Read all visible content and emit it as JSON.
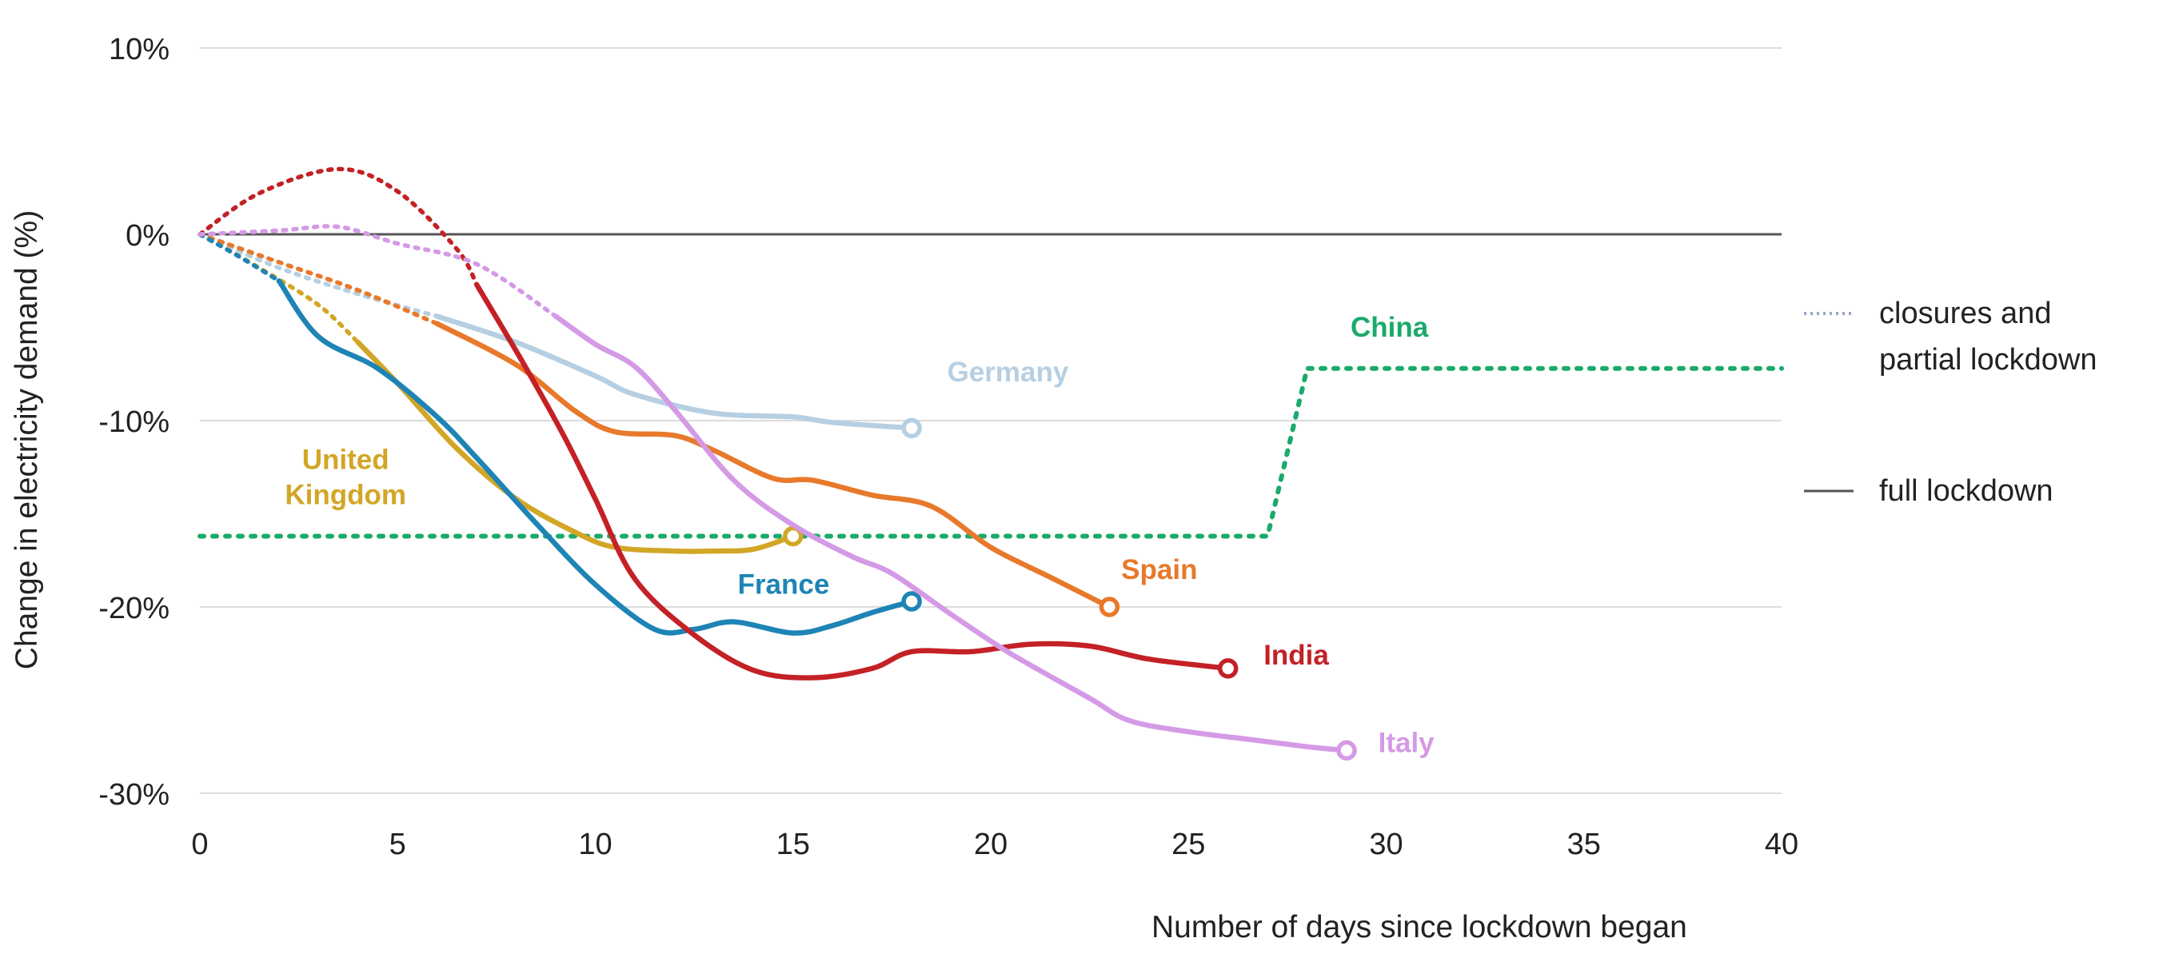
{
  "chart_data": {
    "type": "line",
    "title": "",
    "xlabel": "Number of days since lockdown began",
    "ylabel": "Change in electricity demand (%)",
    "xlim": [
      0,
      40
    ],
    "ylim": [
      -30,
      10
    ],
    "x_ticks": [
      "0",
      "5",
      "10",
      "15",
      "20",
      "25",
      "30",
      "35",
      "40"
    ],
    "y_ticks": [
      "10%",
      "0%",
      "-10%",
      "-20%",
      "-30%"
    ],
    "grid": "horizontal",
    "legend": [
      {
        "label": "closures and\npartial lockdown",
        "style": "dotted"
      },
      {
        "label": "full lockdown",
        "style": "solid"
      }
    ],
    "series": [
      {
        "name": "China",
        "label": "China",
        "color": "#1aaa6a",
        "partial": [
          [
            0,
            -16.2
          ],
          [
            27,
            -16.2
          ],
          [
            28,
            -7.2
          ],
          [
            40,
            -7.2
          ]
        ],
        "full": [],
        "label_at": [
          29.1,
          -5.5
        ]
      },
      {
        "name": "Germany",
        "label": "Germany",
        "color": "#b6cfe2",
        "partial": [
          [
            0,
            0
          ],
          [
            2,
            -1.8
          ],
          [
            4,
            -3.2
          ],
          [
            6,
            -4.4
          ]
        ],
        "full": [
          [
            6,
            -4.4
          ],
          [
            8,
            -5.8
          ],
          [
            10,
            -7.6
          ],
          [
            11,
            -8.6
          ],
          [
            13,
            -9.6
          ],
          [
            15,
            -9.8
          ],
          [
            16,
            -10.1
          ],
          [
            18,
            -10.4
          ]
        ],
        "end_marker": true,
        "label_at": [
          18.9,
          -7.9
        ]
      },
      {
        "name": "Spain",
        "label": "Spain",
        "color": "#e8792b",
        "partial": [
          [
            0,
            0
          ],
          [
            2,
            -1.5
          ],
          [
            4,
            -3
          ],
          [
            6,
            -4.8
          ]
        ],
        "full": [
          [
            6,
            -4.8
          ],
          [
            8,
            -7
          ],
          [
            9.5,
            -9.5
          ],
          [
            10.5,
            -10.6
          ],
          [
            12,
            -10.8
          ],
          [
            13,
            -11.6
          ],
          [
            14.5,
            -13.1
          ],
          [
            15.5,
            -13.2
          ],
          [
            17,
            -14
          ],
          [
            18.5,
            -14.6
          ],
          [
            20,
            -16.8
          ],
          [
            21.5,
            -18.4
          ],
          [
            23,
            -20
          ]
        ],
        "end_marker": true,
        "label_at": [
          23.3,
          -18.5
        ]
      },
      {
        "name": "United Kingdom",
        "label": "United\nKingdom",
        "color": "#d2a626",
        "partial": [
          [
            0,
            0
          ],
          [
            1.5,
            -1.8
          ],
          [
            3,
            -3.8
          ],
          [
            4,
            -5.8
          ]
        ],
        "full": [
          [
            4,
            -5.8
          ],
          [
            5,
            -8
          ],
          [
            6.5,
            -11.5
          ],
          [
            8,
            -14.2
          ],
          [
            9.5,
            -16
          ],
          [
            10.5,
            -16.8
          ],
          [
            12,
            -17
          ],
          [
            13,
            -17
          ],
          [
            14,
            -16.9
          ],
          [
            15,
            -16.2
          ]
        ],
        "end_marker": true,
        "label_at": [
          0.65,
          -12.6
        ]
      },
      {
        "name": "France",
        "label": "France",
        "color": "#1e84b5",
        "partial": [
          [
            0,
            0
          ],
          [
            1,
            -1.2
          ],
          [
            2,
            -2.5
          ]
        ],
        "full": [
          [
            2,
            -2.5
          ],
          [
            3,
            -5.5
          ],
          [
            4.5,
            -7.2
          ],
          [
            6,
            -9.8
          ],
          [
            7,
            -12
          ],
          [
            8.5,
            -15.5
          ],
          [
            10,
            -18.8
          ],
          [
            11.5,
            -21.2
          ],
          [
            12.5,
            -21.2
          ],
          [
            13.5,
            -20.8
          ],
          [
            15,
            -21.4
          ],
          [
            16,
            -21
          ],
          [
            17,
            -20.3
          ],
          [
            18,
            -19.7
          ]
        ],
        "end_marker": true,
        "label_at": [
          13.6,
          -19.3
        ]
      },
      {
        "name": "India",
        "label": "India",
        "color": "#c32126",
        "partial": [
          [
            0,
            0
          ],
          [
            1.5,
            2.2
          ],
          [
            3.5,
            3.5
          ],
          [
            5,
            2.3
          ],
          [
            6.5,
            -0.8
          ],
          [
            7,
            -2.7
          ]
        ],
        "full": [
          [
            7,
            -2.7
          ],
          [
            8.2,
            -7
          ],
          [
            9.2,
            -10.8
          ],
          [
            10,
            -14.2
          ],
          [
            11,
            -18.5
          ],
          [
            12.5,
            -21.5
          ],
          [
            14,
            -23.4
          ],
          [
            15.5,
            -23.8
          ],
          [
            17,
            -23.3
          ],
          [
            18,
            -22.4
          ],
          [
            19.5,
            -22.4
          ],
          [
            21,
            -22
          ],
          [
            22.5,
            -22.1
          ],
          [
            24,
            -22.8
          ],
          [
            26,
            -23.3
          ]
        ],
        "end_marker": true,
        "label_at": [
          26.9,
          -23.1
        ]
      },
      {
        "name": "Italy",
        "label": "Italy",
        "color": "#d59ae6",
        "partial": [
          [
            0,
            0
          ],
          [
            2,
            0.2
          ],
          [
            3.5,
            0.4
          ],
          [
            5,
            -0.5
          ],
          [
            7,
            -1.6
          ],
          [
            9,
            -4.4
          ]
        ],
        "full": [
          [
            9,
            -4.4
          ],
          [
            10,
            -5.9
          ],
          [
            11,
            -7.1
          ],
          [
            12,
            -9.4
          ],
          [
            13.5,
            -13.2
          ],
          [
            15,
            -15.6
          ],
          [
            16.5,
            -17.3
          ],
          [
            17.5,
            -18.2
          ],
          [
            19,
            -20.4
          ],
          [
            20.5,
            -22.5
          ],
          [
            22.5,
            -24.9
          ],
          [
            23.5,
            -26.1
          ],
          [
            25,
            -26.7
          ],
          [
            26.5,
            -27.1
          ],
          [
            28,
            -27.5
          ],
          [
            29,
            -27.7
          ]
        ],
        "end_marker": true,
        "label_at": [
          29.8,
          -27.8
        ]
      }
    ]
  }
}
